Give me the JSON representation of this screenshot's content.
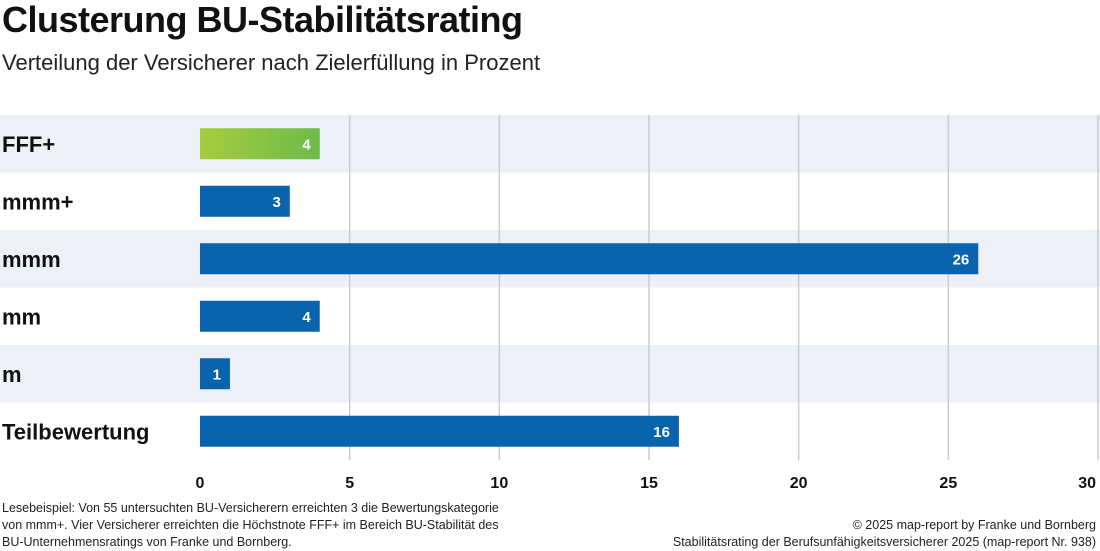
{
  "header": {
    "title": "Clusterung BU-Stabilitätsrating",
    "subtitle": "Verteilung der Versicherer nach Zielerfüllung in Prozent"
  },
  "colors": {
    "bar": "#0a63ad",
    "highlight_start": "#a6cc3f",
    "highlight_end": "#6dbb4a",
    "band": "#edf0f7",
    "grid": "#c9ccd3"
  },
  "chart_data": {
    "type": "bar",
    "orientation": "horizontal",
    "title": "Clusterung BU-Stabilitätsrating",
    "subtitle": "Verteilung der Versicherer nach Zielerfüllung in Prozent",
    "categories": [
      "FFF+",
      "mmm+",
      "mmm",
      "mm",
      "m",
      "Teilbewertung"
    ],
    "values": [
      4,
      3,
      26,
      4,
      1,
      16
    ],
    "highlight": [
      "FFF+"
    ],
    "xlabel": "",
    "ylabel": "",
    "xlim": [
      0,
      30
    ],
    "xticks": [
      0,
      5,
      10,
      15,
      20,
      25,
      30
    ],
    "grid": true
  },
  "footer": {
    "note": "Lesebeispiel: Von 55 untersuchten BU-Versicherern erreichten 3 die Bewertungs­kategorie von mmm+. Vier Versicherer erreichten die Höchstnote FFF+ im Bereich BU-Stabilität des BU-Unternehmensratings von Franke und Bornberg.",
    "copyright": "© 2025 map-report by Franke und Bornberg",
    "source": "Stabilitätsrating der Berufsunfähigkeitsversicherer 2025 (map-report Nr. 938)"
  }
}
